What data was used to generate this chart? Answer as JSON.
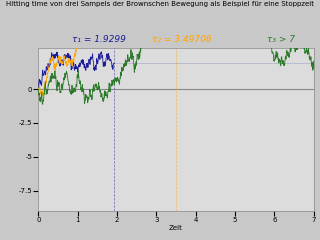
{
  "title": "Hitting time von drei Sampels der Brownschen Bewegung als Beispiel für eine Stoppzeit",
  "xlabel": "Zeit",
  "tau1_label": "τ₁ = 1.9299",
  "tau2_label": "τ₂ = 3.49706",
  "tau3_label": "τ₃ > 7",
  "tau1_value": 1.9299,
  "tau2_value": 3.49706,
  "xlim": [
    0,
    7
  ],
  "ylim": [
    -9,
    3
  ],
  "bg_color": "#c8c8c8",
  "plot_bg_color": "#dcdcdc",
  "header_bg_color": "#b0b0b0",
  "color1": "#1c1c99",
  "color2": "#ffa500",
  "color3": "#2a7a2a",
  "hitting_level": 0,
  "T": 7.0,
  "n_steps": 1400,
  "title_fontsize": 5.0,
  "label_fontsize": 6.5,
  "tick_fontsize": 5.0,
  "yticks": [
    0,
    -2.5,
    -5,
    -7.5
  ],
  "ytick_labels": [
    "0",
    "-2.5",
    "-5",
    "-7.5"
  ],
  "xticks": [
    0,
    1,
    2,
    3,
    4,
    5,
    6,
    7
  ]
}
